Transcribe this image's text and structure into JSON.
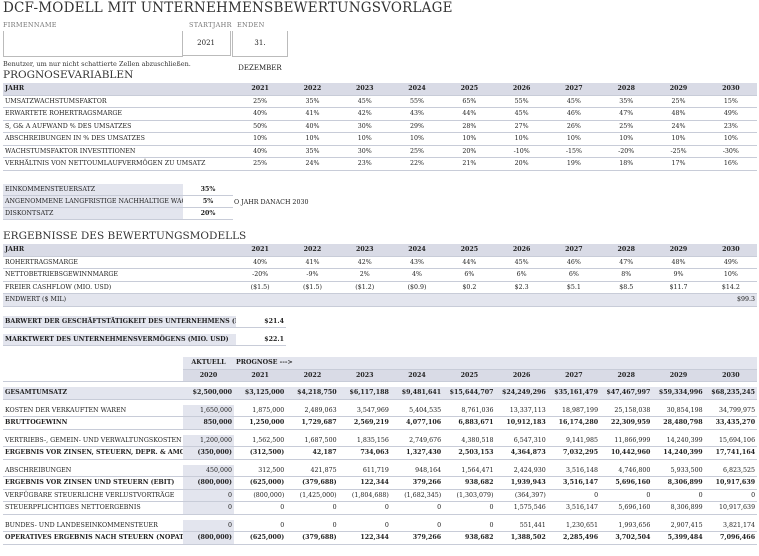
{
  "title": "DCF-MODELL MIT UNTERNEHMENSBEWERTUNGSVORLAGE",
  "header_fields": {
    "company_label": "FIRMENNAME",
    "start_label": "STARTJAHR",
    "end_label": "ENDEN",
    "company_value": "",
    "start_value": "2021",
    "end_value": "31. DEZEMBER"
  },
  "note": "Benutzer, um nur nicht schattierte Zellen abzuschließen.",
  "forecast": {
    "title": "PROGNOSEVARIABLEN",
    "header": [
      "JAHR",
      "2021",
      "2022",
      "2023",
      "2024",
      "2025",
      "2026",
      "2027",
      "2028",
      "2029",
      "2030"
    ],
    "rows": [
      [
        "UMSATZWACHSTUMSFAKTOR",
        "25%",
        "35%",
        "45%",
        "55%",
        "65%",
        "55%",
        "45%",
        "35%",
        "25%",
        "15%"
      ],
      [
        "ERWARTETE ROHERTRAGSMARGE",
        "40%",
        "41%",
        "42%",
        "43%",
        "44%",
        "45%",
        "46%",
        "47%",
        "48%",
        "49%"
      ],
      [
        "S, G& A AUFWAND % DES UMSATZES",
        "50%",
        "40%",
        "30%",
        "29%",
        "28%",
        "27%",
        "26%",
        "25%",
        "24%",
        "23%"
      ],
      [
        "ABSCHREIBUNGEN IN % DES UMSATZES",
        "10%",
        "10%",
        "10%",
        "10%",
        "10%",
        "10%",
        "10%",
        "10%",
        "10%",
        "10%"
      ],
      [
        "WACHSTUMSFAKTOR INVESTITIONEN",
        "40%",
        "35%",
        "30%",
        "25%",
        "20%",
        "-10%",
        "-15%",
        "-20%",
        "-25%",
        "-30%"
      ],
      [
        "VERHÄLTNIS VON NETTOUMLAUFVERMÖGEN ZU UMSATZ",
        "25%",
        "24%",
        "23%",
        "22%",
        "21%",
        "20%",
        "19%",
        "18%",
        "17%",
        "16%"
      ]
    ]
  },
  "rates": {
    "tax_label": "EINKOMMENSTEUERSATZ",
    "tax_value": "35%",
    "growth_label": "ANGENOMMENE LANGFRISTIGE NACHHALTIGE WACHSTUMSRATE",
    "growth_value": "5%",
    "growth_note": "O JAHR DANACH 2030",
    "discount_label": "DISKONTSATZ",
    "discount_value": "20%"
  },
  "results": {
    "title": "ERGEBNISSE DES BEWERTUNGSMODELLS",
    "header": [
      "JAHR",
      "2021",
      "2022",
      "2023",
      "2024",
      "2025",
      "2026",
      "2027",
      "2028",
      "2029",
      "2030"
    ],
    "rows": [
      [
        "ROHERTRAGSMARGE",
        "40%",
        "41%",
        "42%",
        "43%",
        "44%",
        "45%",
        "46%",
        "47%",
        "48%",
        "49%"
      ],
      [
        "NETTOBETRIEBSGEWINNMARGE",
        "-20%",
        "-9%",
        "2%",
        "4%",
        "6%",
        "6%",
        "6%",
        "8%",
        "9%",
        "10%"
      ],
      [
        "FREIER CASHFLOW (MIO. USD)",
        "($1.5)",
        "($1.5)",
        "($1.2)",
        "($0.9)",
        "$0.2",
        "$2.3",
        "$5.1",
        "$8.5",
        "$11.7",
        "$14.2"
      ],
      [
        "ENDWERT ($ MIL)",
        "",
        "",
        "",
        "",
        "",
        "",
        "",
        "",
        "",
        "$99.3"
      ]
    ],
    "business_value_label": "BARWERT DER GESCHÄFTSTÄTIGKEIT DES UNTERNEHMENS (MIO. USD)",
    "business_value": "$21.4",
    "market_value_label": "MARKTWERT DES UNTERNEHMENSVERMÖGENS (MIO. USD)",
    "market_value": "$22.1"
  },
  "income": {
    "actual_label": "AKTUELL",
    "forecast_label": "PROGNOSE --->",
    "years": [
      "2020",
      "2021",
      "2022",
      "2023",
      "2024",
      "2025",
      "2026",
      "2027",
      "2028",
      "2029",
      "2030"
    ],
    "revenue": [
      "GESAMTUMSATZ",
      "$2,500,000",
      "$3,125,000",
      "$4,218,750",
      "$6,117,188",
      "$9,481,641",
      "$15,644,707",
      "$24,249,296",
      "$35,161,479",
      "$47,467,997",
      "$59,334,996",
      "$68,235,245"
    ],
    "cogs": [
      "KOSTEN DER VERKAUFTEN WAREN",
      "1,650,000",
      "1,875,000",
      "2,489,063",
      "3,547,969",
      "5,404,535",
      "8,761,036",
      "13,337,113",
      "18,987,199",
      "25,158,038",
      "30,854,198",
      "34,799,975"
    ],
    "gross": [
      "BRUTTOGEWINN",
      "850,000",
      "1,250,000",
      "1,729,687",
      "2,569,219",
      "4,077,106",
      "6,883,671",
      "10,912,183",
      "16,174,280",
      "22,309,959",
      "28,480,798",
      "33,435,270"
    ],
    "sga": [
      "VERTRIEBS-, GEMEIN- UND VERWALTUNGSKOSTEN",
      "1,200,000",
      "1,562,500",
      "1,687,500",
      "1,835,156",
      "2,749,676",
      "4,380,518",
      "6,547,310",
      "9,141,985",
      "11,866,999",
      "14,240,399",
      "15,694,106"
    ],
    "ebitda": [
      "ERGEBNIS VOR ZINSEN, STEUERN, DEPR. & AMORT. (EBITDA)",
      "(350,000)",
      "(312,500)",
      "42,187",
      "734,063",
      "1,327,430",
      "2,503,153",
      "4,364,873",
      "7,032,295",
      "10,442,960",
      "14,240,399",
      "17,741,164"
    ],
    "depr": [
      "ABSCHREIBUNGEN",
      "450,000",
      "312,500",
      "421,875",
      "611,719",
      "948,164",
      "1,564,471",
      "2,424,930",
      "3,516,148",
      "4,746,800",
      "5,933,500",
      "6,823,525"
    ],
    "ebit": [
      "ERGEBNIS VOR ZINSEN UND STEUERN (EBIT)",
      "(800,000)",
      "(625,000)",
      "(379,688)",
      "122,344",
      "379,266",
      "938,682",
      "1,939,943",
      "3,516,147",
      "5,696,160",
      "8,306,899",
      "10,917,639"
    ],
    "nol": [
      "VERFÜGBARE STEUERLICHE VERLUSTVORTRÄGE",
      "0",
      "(800,000)",
      "(1,425,000)",
      "(1,804,688)",
      "(1,682,345)",
      "(1,303,079)",
      "(364,397)",
      "0",
      "0",
      "0",
      "0"
    ],
    "taxable": [
      "STEUERPFLICHTIGES NETTOERGEBNIS",
      "0",
      "0",
      "0",
      "0",
      "0",
      "0",
      "1,575,546",
      "3,516,147",
      "5,696,160",
      "8,306,899",
      "10,917,639"
    ],
    "taxes": [
      "BUNDES- UND LANDESEINKOMMENSTEUER",
      "0",
      "0",
      "0",
      "0",
      "0",
      "0",
      "551,441",
      "1,230,651",
      "1,993,656",
      "2,907,415",
      "3,821,174"
    ],
    "nopat": [
      "OPERATIVES ERGEBNIS NACH STEUERN (NOPAT)",
      "(800,000)",
      "(625,000)",
      "(379,688)",
      "122,344",
      "379,266",
      "938,682",
      "1,388,502",
      "2,285,496",
      "3,702,504",
      "5,399,484",
      "7,096,466"
    ]
  }
}
